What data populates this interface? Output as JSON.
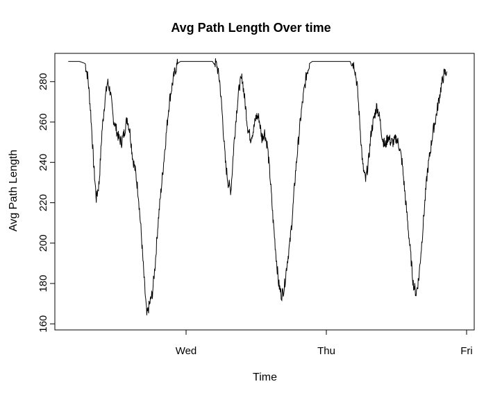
{
  "chart_data": {
    "type": "line",
    "title": "Avg Path Length Over time",
    "xlabel": "Time",
    "ylabel": "Avg Path Length",
    "x_ticks": [
      "Wed",
      "Thu",
      "Fri"
    ],
    "y_ticks": [
      160,
      180,
      200,
      220,
      240,
      260,
      280
    ],
    "ylim": [
      157,
      294
    ],
    "grid": false,
    "series": [
      {
        "x_unit": "days_since_Tue_00:00",
        "points": [
          [
            -0.84,
            290
          ],
          [
            -0.76,
            290
          ],
          [
            -0.72,
            289
          ],
          [
            -0.7,
            282
          ],
          [
            -0.68,
            265
          ],
          [
            -0.66,
            240
          ],
          [
            -0.64,
            222
          ],
          [
            -0.62,
            230
          ],
          [
            -0.6,
            255
          ],
          [
            -0.58,
            270
          ],
          [
            -0.56,
            280
          ],
          [
            -0.54,
            275
          ],
          [
            -0.52,
            262
          ],
          [
            -0.5,
            257
          ],
          [
            -0.48,
            252
          ],
          [
            -0.46,
            250
          ],
          [
            -0.44,
            255
          ],
          [
            -0.42,
            262
          ],
          [
            -0.4,
            255
          ],
          [
            -0.38,
            242
          ],
          [
            -0.36,
            235
          ],
          [
            -0.34,
            224
          ],
          [
            -0.32,
            205
          ],
          [
            -0.3,
            183
          ],
          [
            -0.28,
            164
          ],
          [
            -0.26,
            170
          ],
          [
            -0.24,
            175
          ],
          [
            -0.22,
            190
          ],
          [
            -0.2,
            210
          ],
          [
            -0.18,
            225
          ],
          [
            -0.16,
            240
          ],
          [
            -0.14,
            255
          ],
          [
            -0.12,
            270
          ],
          [
            -0.1,
            278
          ],
          [
            -0.08,
            285
          ],
          [
            -0.06,
            289
          ],
          [
            -0.04,
            290
          ],
          [
            0.0,
            290
          ],
          [
            0.1,
            290
          ],
          [
            0.2,
            290
          ],
          [
            0.22,
            288
          ],
          [
            0.24,
            280
          ],
          [
            0.26,
            262
          ],
          [
            0.28,
            240
          ],
          [
            0.3,
            230
          ],
          [
            0.32,
            226
          ],
          [
            0.34,
            248
          ],
          [
            0.36,
            265
          ],
          [
            0.38,
            278
          ],
          [
            0.4,
            282
          ],
          [
            0.42,
            270
          ],
          [
            0.44,
            257
          ],
          [
            0.46,
            252
          ],
          [
            0.48,
            256
          ],
          [
            0.5,
            263
          ],
          [
            0.52,
            262
          ],
          [
            0.54,
            252
          ],
          [
            0.56,
            255
          ],
          [
            0.58,
            248
          ],
          [
            0.6,
            232
          ],
          [
            0.62,
            212
          ],
          [
            0.64,
            195
          ],
          [
            0.66,
            180
          ],
          [
            0.68,
            174
          ],
          [
            0.7,
            178
          ],
          [
            0.72,
            190
          ],
          [
            0.74,
            200
          ],
          [
            0.76,
            215
          ],
          [
            0.78,
            235
          ],
          [
            0.8,
            250
          ],
          [
            0.82,
            264
          ],
          [
            0.84,
            275
          ],
          [
            0.86,
            284
          ],
          [
            0.88,
            289
          ],
          [
            0.9,
            290
          ],
          [
            1.0,
            290
          ],
          [
            1.1,
            290
          ],
          [
            1.18,
            290
          ],
          [
            1.2,
            288
          ],
          [
            1.22,
            278
          ],
          [
            1.24,
            258
          ],
          [
            1.26,
            238
          ],
          [
            1.28,
            231
          ],
          [
            1.3,
            240
          ],
          [
            1.32,
            255
          ],
          [
            1.34,
            262
          ],
          [
            1.36,
            268
          ],
          [
            1.38,
            262
          ],
          [
            1.4,
            252
          ],
          [
            1.42,
            248
          ],
          [
            1.44,
            253
          ],
          [
            1.46,
            250
          ],
          [
            1.48,
            250
          ],
          [
            1.5,
            252
          ],
          [
            1.52,
            248
          ],
          [
            1.54,
            240
          ],
          [
            1.56,
            225
          ],
          [
            1.58,
            210
          ],
          [
            1.6,
            195
          ],
          [
            1.62,
            180
          ],
          [
            1.64,
            175
          ],
          [
            1.66,
            183
          ],
          [
            1.68,
            200
          ],
          [
            1.7,
            218
          ],
          [
            1.72,
            235
          ],
          [
            1.74,
            245
          ],
          [
            1.76,
            255
          ],
          [
            1.78,
            262
          ],
          [
            1.8,
            270
          ],
          [
            1.82,
            278
          ],
          [
            1.84,
            284
          ],
          [
            1.86,
            285
          ]
        ]
      }
    ]
  }
}
